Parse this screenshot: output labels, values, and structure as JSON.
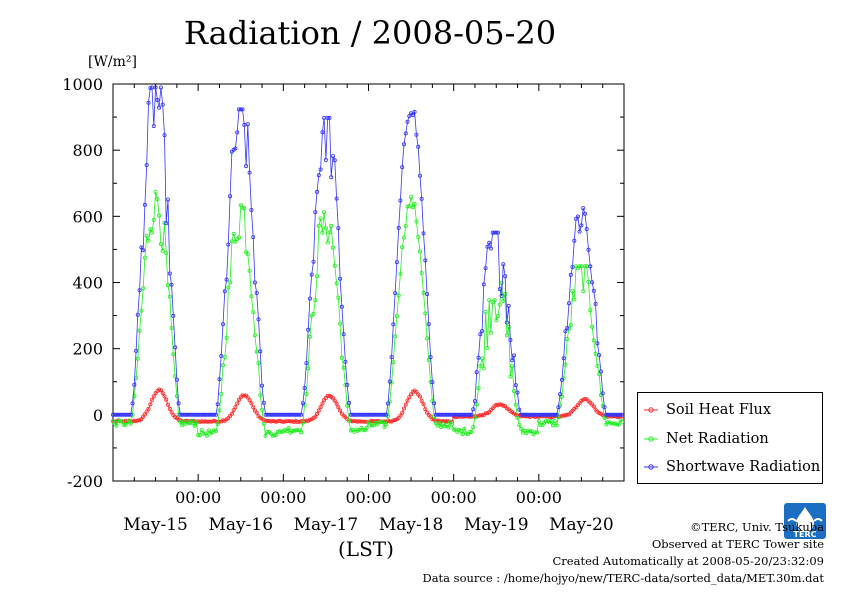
{
  "header": {
    "title": "Radiation / 2008-05-20",
    "unit_label": "[W/m²]",
    "xaxis_label": "(LST)"
  },
  "credits": {
    "copyright": "©TERC, Univ. Tsukuba",
    "observed": "Observed at TERC Tower site",
    "created": "Created Automatically at 2008-05-20/23:32:09",
    "source": "Data source : /home/hojyo/new/TERC-data/sorted_data/MET.30m.dat"
  },
  "logo": {
    "icon": "terc-logo-icon",
    "text": "TERC",
    "color": "#1a6fc2"
  },
  "chart_data": {
    "type": "line",
    "title": "Radiation / 2008-05-20",
    "ylabel": "[W/m²]",
    "xlabel": "(LST)",
    "ylim": [
      -200,
      1000
    ],
    "yticks": [
      "1000",
      "800",
      "600",
      "400",
      "200",
      "0",
      "-200"
    ],
    "xrange_days": [
      0,
      6
    ],
    "xtick_time_label": "00:00",
    "xtick_day_labels": [
      "May-15",
      "May-16",
      "May-17",
      "May-18",
      "May-19",
      "May-20"
    ],
    "grid": false,
    "legend_placement": "right-bottom",
    "sampling": "30 min",
    "series": [
      {
        "name": "Soil Heat Flux",
        "color": "#ff2a2a",
        "marker": "circle",
        "daily": [
          {
            "night": -20,
            "peak": 75,
            "shape": "smooth"
          },
          {
            "night": -20,
            "peak": 60,
            "shape": "smooth"
          },
          {
            "night": -20,
            "peak": 58,
            "shape": "smooth"
          },
          {
            "night": -20,
            "peak": 72,
            "shape": "smooth"
          },
          {
            "night": -5,
            "peak": 32,
            "shape": "smooth"
          },
          {
            "night": -5,
            "peak": 48,
            "shape": "smooth"
          }
        ]
      },
      {
        "name": "Net Radiation",
        "color": "#22ee22",
        "marker": "circle",
        "daily": [
          {
            "night": -25,
            "peak": 660,
            "shape": "jagged"
          },
          {
            "night": -55,
            "peak": 620,
            "shape": "jagged"
          },
          {
            "night": -45,
            "peak": 600,
            "shape": "jagged"
          },
          {
            "night": -30,
            "peak": 645,
            "shape": "smooth"
          },
          {
            "night": -50,
            "peak": 390,
            "shape": "cloudy"
          },
          {
            "night": -25,
            "peak": 440,
            "shape": "jagged"
          }
        ]
      },
      {
        "name": "Shortwave Radiation",
        "color": "#3333ff",
        "marker": "circle",
        "daily": [
          {
            "night": 0,
            "peak": 970,
            "shape": "jagged"
          },
          {
            "night": 0,
            "peak": 905,
            "shape": "jagged"
          },
          {
            "night": 0,
            "peak": 880,
            "shape": "jagged"
          },
          {
            "night": 0,
            "peak": 935,
            "shape": "smooth"
          },
          {
            "night": 0,
            "peak": 540,
            "shape": "cloudy"
          },
          {
            "night": 0,
            "peak": 615,
            "shape": "jagged"
          }
        ]
      }
    ]
  }
}
